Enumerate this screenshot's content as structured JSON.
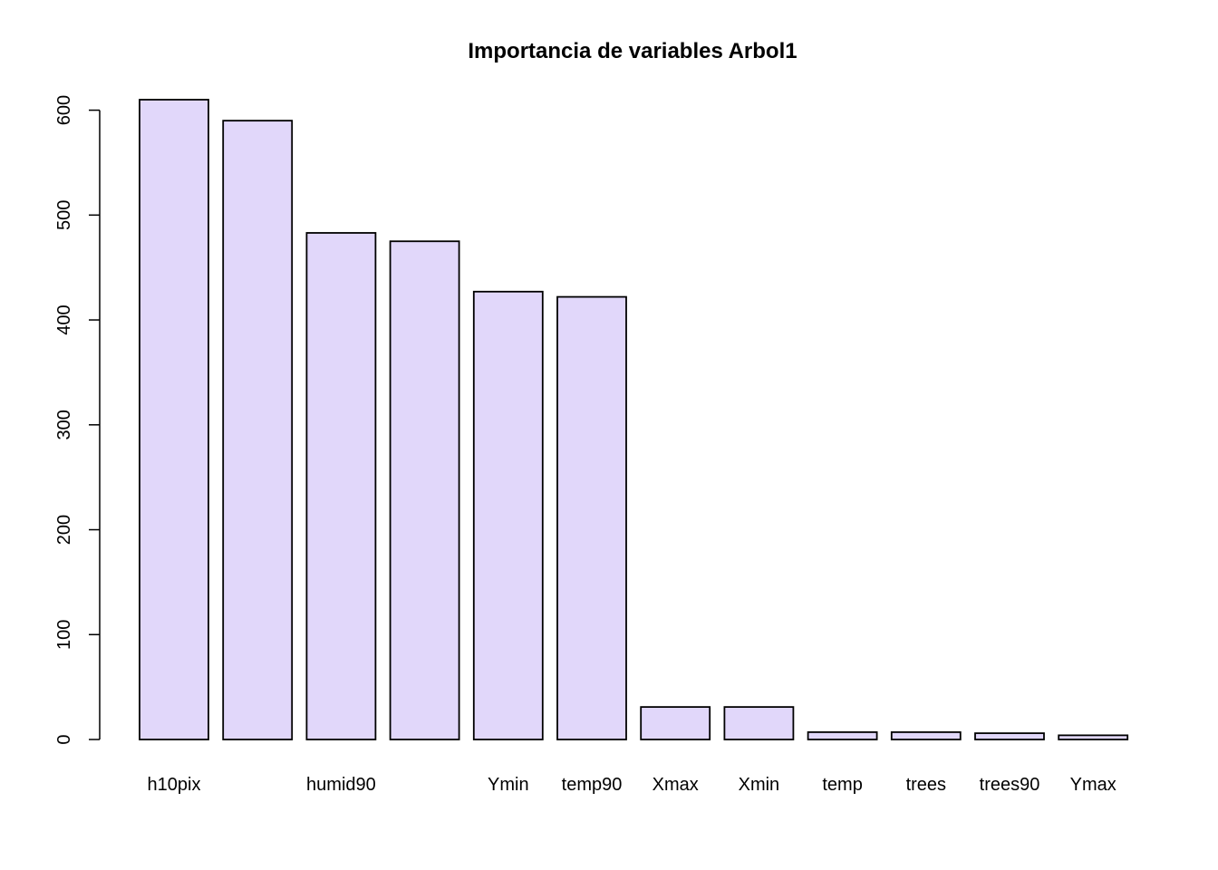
{
  "chart_data": {
    "type": "bar",
    "title": "Importancia de variables Arbol1",
    "xlabel": "",
    "ylabel": "",
    "categories": [
      "h10pix",
      "",
      "humid90",
      "",
      "Ymin",
      "temp90",
      "Xmax",
      "Xmin",
      "temp",
      "trees",
      "trees90",
      "Ymax"
    ],
    "values": [
      610,
      590,
      483,
      475,
      427,
      422,
      31,
      31,
      7,
      7,
      6,
      4
    ],
    "ylim": [
      0,
      610
    ],
    "yticks": [
      0,
      100,
      200,
      300,
      400,
      500,
      600
    ],
    "grid": false,
    "bar_color": "#e1d7fa",
    "edge_color": "#000000"
  }
}
